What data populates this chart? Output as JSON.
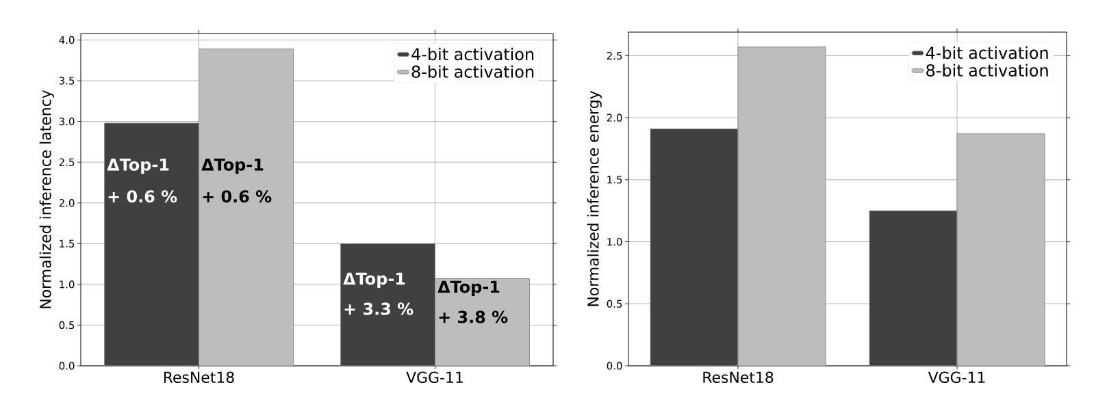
{
  "chart_data": [
    {
      "type": "bar",
      "categories": [
        "ResNet18",
        "VGG-11"
      ],
      "ylabel": "Normalized inference latency",
      "series": [
        {
          "name": "4-bit activation",
          "color": "#404040",
          "values": [
            2.98,
            1.5
          ]
        },
        {
          "name": "8-bit activation",
          "color": "#bdbdbd",
          "values": [
            3.89,
            1.07
          ]
        }
      ],
      "ylim": [
        0,
        4.08
      ],
      "yticks": [
        {
          "value": 0,
          "label": "0.0"
        },
        {
          "value": 0.5,
          "label": "0.5"
        },
        {
          "value": 1,
          "label": "1.0"
        },
        {
          "value": 1.5,
          "label": "1.5"
        },
        {
          "value": 2,
          "label": "2.0"
        },
        {
          "value": 2.5,
          "label": "2.5"
        },
        {
          "value": 3,
          "label": "3.0"
        },
        {
          "value": 3.5,
          "label": "3.5"
        },
        {
          "value": 4,
          "label": "4.0"
        }
      ],
      "annotations": [
        {
          "text": "ΔTop-1",
          "x": "ResNet18",
          "y": 2.45
        },
        {
          "text": "+ 0.6 %",
          "x": "ResNet18",
          "y": 2.08
        },
        {
          "text": "ΔTop-1",
          "x": "ResNet18",
          "y": 2.45
        },
        {
          "text": "+ 0.6 %",
          "x": "ResNet18",
          "y": 2.08
        },
        {
          "text": "ΔTop-1",
          "x": "VGG-11",
          "y": 1.05
        },
        {
          "text": "+ 3.3 %",
          "x": "VGG-11",
          "y": 0.7
        },
        {
          "text": "ΔTop-1",
          "x": "VGG-11",
          "y": 0.95
        },
        {
          "text": "+ 3.8 %",
          "x": "VGG-11",
          "y": 0.6
        }
      ],
      "grid": true,
      "legend": "top right"
    },
    {
      "type": "bar",
      "categories": [
        "ResNet18",
        "VGG-11"
      ],
      "ylabel": "Normalized inference energy",
      "series": [
        {
          "name": "4-bit activation",
          "color": "#404040",
          "values": [
            1.91,
            1.25
          ]
        },
        {
          "name": "8-bit activation",
          "color": "#bdbdbd",
          "values": [
            2.57,
            1.87
          ]
        }
      ],
      "ylim": [
        0,
        2.69
      ],
      "yticks": [
        {
          "value": 0,
          "label": "0.0"
        },
        {
          "value": 0.5,
          "label": "0.5"
        },
        {
          "value": 1,
          "label": "1.0"
        },
        {
          "value": 1.5,
          "label": "1.5"
        },
        {
          "value": 2,
          "label": "2.0"
        },
        {
          "value": 2.5,
          "label": "2.5"
        }
      ],
      "grid": true,
      "legend": "top right"
    }
  ]
}
